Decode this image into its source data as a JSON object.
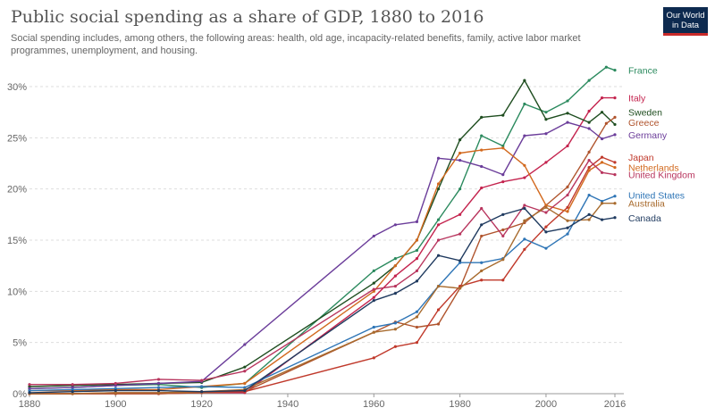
{
  "header": {
    "title": "Public social spending as a share of GDP, 1880 to 2016",
    "subtitle": "Social spending includes, among others, the following areas: health, old age, incapacity-related benefits, family, active labor market programmes, unemployment, and housing.",
    "logo_line1": "Our World",
    "logo_line2": "in Data"
  },
  "chart_data": {
    "type": "line",
    "title": "Public social spending as a share of GDP, 1880 to 2016",
    "subtitle": "Social spending includes, among others, the following areas: health, old age, incapacity-related benefits, family, active labor market programmes, unemployment, and housing.",
    "xlim": [
      1880,
      2016
    ],
    "ylim": [
      0,
      30
    ],
    "x_ticks": [
      1880,
      1900,
      1920,
      1940,
      1960,
      1980,
      2000,
      2016
    ],
    "y_ticks": [
      0,
      5,
      10,
      15,
      20,
      25,
      30
    ],
    "y_tick_labels": [
      "0%",
      "5%",
      "10%",
      "15%",
      "20%",
      "25%",
      "30%"
    ],
    "grid": "horizontal dashed",
    "legend": "labels at line ends (right)",
    "series": [
      {
        "name": "France",
        "color": "#2b8a5e",
        "label_y": 31.6,
        "points": [
          [
            1880,
            0.5
          ],
          [
            1890,
            0.6
          ],
          [
            1900,
            0.8
          ],
          [
            1910,
            0.9
          ],
          [
            1920,
            0.6
          ],
          [
            1930,
            1.0
          ],
          [
            1960,
            12.0
          ],
          [
            1965,
            13.2
          ],
          [
            1970,
            14.0
          ],
          [
            1975,
            17.0
          ],
          [
            1980,
            20.0
          ],
          [
            1985,
            25.2
          ],
          [
            1990,
            24.2
          ],
          [
            1995,
            28.3
          ],
          [
            2000,
            27.5
          ],
          [
            2005,
            28.6
          ],
          [
            2010,
            30.6
          ],
          [
            2014,
            31.9
          ],
          [
            2016,
            31.6
          ]
        ]
      },
      {
        "name": "Italy",
        "color": "#c4234e",
        "label_y": 28.9,
        "points": [
          [
            1880,
            0.0
          ],
          [
            1890,
            0.0
          ],
          [
            1900,
            0.0
          ],
          [
            1910,
            0.0
          ],
          [
            1920,
            0.1
          ],
          [
            1930,
            0.1
          ],
          [
            1960,
            9.4
          ],
          [
            1965,
            11.5
          ],
          [
            1970,
            13.2
          ],
          [
            1975,
            16.5
          ],
          [
            1980,
            17.5
          ],
          [
            1985,
            20.1
          ],
          [
            1990,
            20.7
          ],
          [
            1995,
            21.1
          ],
          [
            2000,
            22.6
          ],
          [
            2005,
            24.2
          ],
          [
            2010,
            27.6
          ],
          [
            2013,
            28.9
          ],
          [
            2016,
            28.9
          ]
        ]
      },
      {
        "name": "Sweden",
        "color": "#1e4d1f",
        "label_y": 27.5,
        "points": [
          [
            1880,
            0.7
          ],
          [
            1890,
            0.8
          ],
          [
            1900,
            0.9
          ],
          [
            1910,
            1.0
          ],
          [
            1920,
            1.1
          ],
          [
            1930,
            2.6
          ],
          [
            1960,
            10.8
          ],
          [
            1965,
            12.5
          ],
          [
            1970,
            15.0
          ],
          [
            1975,
            20.0
          ],
          [
            1980,
            24.8
          ],
          [
            1985,
            27.0
          ],
          [
            1990,
            27.2
          ],
          [
            1995,
            30.6
          ],
          [
            2000,
            26.8
          ],
          [
            2005,
            27.4
          ],
          [
            2010,
            26.5
          ],
          [
            2013,
            27.5
          ],
          [
            2016,
            26.3
          ]
        ]
      },
      {
        "name": "Greece",
        "color": "#b0542d",
        "label_y": 26.5,
        "points": [
          [
            1880,
            0.0
          ],
          [
            1890,
            0.0
          ],
          [
            1900,
            0.0
          ],
          [
            1910,
            0.0
          ],
          [
            1920,
            0.1
          ],
          [
            1930,
            0.2
          ],
          [
            1960,
            6.0
          ],
          [
            1965,
            7.0
          ],
          [
            1970,
            6.5
          ],
          [
            1975,
            6.8
          ],
          [
            1980,
            10.3
          ],
          [
            1985,
            15.4
          ],
          [
            1990,
            16.0
          ],
          [
            1995,
            16.7
          ],
          [
            2000,
            18.4
          ],
          [
            2005,
            20.2
          ],
          [
            2010,
            23.6
          ],
          [
            2014,
            26.4
          ],
          [
            2016,
            27.0
          ]
        ]
      },
      {
        "name": "Germany",
        "color": "#6b3d9a",
        "label_y": 25.3,
        "points": [
          [
            1880,
            0.5
          ],
          [
            1890,
            0.6
          ],
          [
            1900,
            0.8
          ],
          [
            1910,
            1.0
          ],
          [
            1920,
            1.2
          ],
          [
            1930,
            4.8
          ],
          [
            1960,
            15.4
          ],
          [
            1965,
            16.5
          ],
          [
            1970,
            16.8
          ],
          [
            1975,
            23.0
          ],
          [
            1980,
            22.8
          ],
          [
            1985,
            22.2
          ],
          [
            1990,
            21.4
          ],
          [
            1995,
            25.2
          ],
          [
            2000,
            25.4
          ],
          [
            2005,
            26.5
          ],
          [
            2010,
            25.9
          ],
          [
            2013,
            24.9
          ],
          [
            2016,
            25.3
          ]
        ]
      },
      {
        "name": "Japan",
        "color": "#c0392b",
        "label_y": 23.1,
        "points": [
          [
            1880,
            0.0
          ],
          [
            1890,
            0.0
          ],
          [
            1900,
            0.1
          ],
          [
            1910,
            0.1
          ],
          [
            1920,
            0.2
          ],
          [
            1930,
            0.2
          ],
          [
            1960,
            3.5
          ],
          [
            1965,
            4.6
          ],
          [
            1970,
            5.0
          ],
          [
            1975,
            8.2
          ],
          [
            1980,
            10.5
          ],
          [
            1985,
            11.1
          ],
          [
            1990,
            11.1
          ],
          [
            1995,
            14.1
          ],
          [
            2000,
            16.3
          ],
          [
            2005,
            18.2
          ],
          [
            2010,
            22.1
          ],
          [
            2013,
            23.1
          ],
          [
            2016,
            22.6
          ]
        ]
      },
      {
        "name": "Netherlands",
        "color": "#d2691e",
        "label_y": 22.1,
        "points": [
          [
            1880,
            0.3
          ],
          [
            1890,
            0.3
          ],
          [
            1900,
            0.4
          ],
          [
            1910,
            0.4
          ],
          [
            1920,
            0.7
          ],
          [
            1930,
            1.0
          ],
          [
            1960,
            10.0
          ],
          [
            1965,
            12.5
          ],
          [
            1970,
            15.0
          ],
          [
            1975,
            20.5
          ],
          [
            1980,
            23.5
          ],
          [
            1985,
            23.8
          ],
          [
            1990,
            24.0
          ],
          [
            1995,
            22.3
          ],
          [
            2000,
            18.4
          ],
          [
            2005,
            17.8
          ],
          [
            2010,
            21.8
          ],
          [
            2013,
            22.6
          ],
          [
            2016,
            22.1
          ]
        ]
      },
      {
        "name": "United Kingdom",
        "color": "#b8355e",
        "label_y": 21.4,
        "points": [
          [
            1880,
            0.9
          ],
          [
            1890,
            0.9
          ],
          [
            1900,
            1.0
          ],
          [
            1910,
            1.4
          ],
          [
            1920,
            1.3
          ],
          [
            1930,
            2.2
          ],
          [
            1960,
            10.2
          ],
          [
            1965,
            10.5
          ],
          [
            1970,
            12.0
          ],
          [
            1975,
            15.0
          ],
          [
            1980,
            15.6
          ],
          [
            1985,
            18.1
          ],
          [
            1990,
            15.4
          ],
          [
            1995,
            18.4
          ],
          [
            2000,
            17.7
          ],
          [
            2005,
            19.4
          ],
          [
            2010,
            22.8
          ],
          [
            2013,
            21.6
          ],
          [
            2016,
            21.4
          ]
        ]
      },
      {
        "name": "United States",
        "color": "#2e75b6",
        "label_y": 19.4,
        "points": [
          [
            1880,
            0.3
          ],
          [
            1890,
            0.4
          ],
          [
            1900,
            0.5
          ],
          [
            1910,
            0.6
          ],
          [
            1920,
            0.7
          ],
          [
            1930,
            0.6
          ],
          [
            1960,
            6.5
          ],
          [
            1965,
            6.9
          ],
          [
            1970,
            8.0
          ],
          [
            1975,
            10.5
          ],
          [
            1980,
            12.8
          ],
          [
            1985,
            12.8
          ],
          [
            1990,
            13.2
          ],
          [
            1995,
            15.1
          ],
          [
            2000,
            14.2
          ],
          [
            2005,
            15.6
          ],
          [
            2010,
            19.4
          ],
          [
            2013,
            18.8
          ],
          [
            2016,
            19.3
          ]
        ]
      },
      {
        "name": "Australia",
        "color": "#a86b2e",
        "label_y": 18.6,
        "points": [
          [
            1880,
            0.0
          ],
          [
            1890,
            0.0
          ],
          [
            1900,
            0.1
          ],
          [
            1910,
            0.1
          ],
          [
            1920,
            0.2
          ],
          [
            1930,
            0.4
          ],
          [
            1960,
            6.0
          ],
          [
            1965,
            6.3
          ],
          [
            1970,
            7.5
          ],
          [
            1975,
            10.5
          ],
          [
            1980,
            10.3
          ],
          [
            1985,
            12.0
          ],
          [
            1990,
            13.1
          ],
          [
            1995,
            16.9
          ],
          [
            2000,
            18.2
          ],
          [
            2005,
            16.9
          ],
          [
            2010,
            17.0
          ],
          [
            2013,
            18.6
          ],
          [
            2016,
            18.6
          ]
        ]
      },
      {
        "name": "Canada",
        "color": "#1f3a5f",
        "label_y": 17.2,
        "points": [
          [
            1880,
            0.1
          ],
          [
            1890,
            0.2
          ],
          [
            1900,
            0.3
          ],
          [
            1910,
            0.3
          ],
          [
            1920,
            0.2
          ],
          [
            1930,
            0.3
          ],
          [
            1960,
            9.1
          ],
          [
            1965,
            9.8
          ],
          [
            1970,
            11.0
          ],
          [
            1975,
            13.5
          ],
          [
            1980,
            13.0
          ],
          [
            1985,
            16.5
          ],
          [
            1990,
            17.5
          ],
          [
            1995,
            18.1
          ],
          [
            2000,
            15.8
          ],
          [
            2005,
            16.2
          ],
          [
            2010,
            17.5
          ],
          [
            2013,
            17.0
          ],
          [
            2016,
            17.2
          ]
        ]
      }
    ]
  }
}
